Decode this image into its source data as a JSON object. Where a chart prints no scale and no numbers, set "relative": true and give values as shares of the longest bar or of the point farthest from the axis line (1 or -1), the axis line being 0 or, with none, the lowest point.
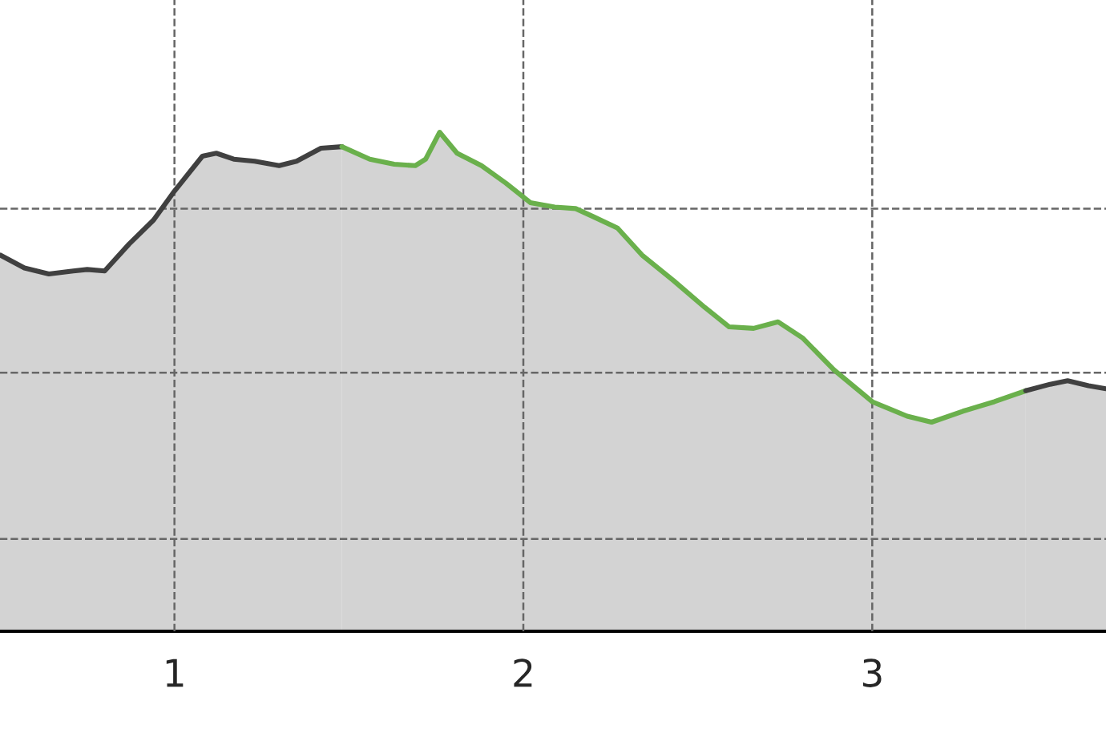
{
  "chart_data": {
    "type": "area",
    "relative": true,
    "color": "#d3d3d3",
    "xlim": [
      0.5,
      3.67
    ],
    "xticks": [
      1,
      2,
      3
    ],
    "grid": true,
    "line_style": "solid",
    "series": [
      {
        "color": "#404040",
        "x": [
          0.5,
          0.57,
          0.64,
          0.71,
          0.75,
          0.8,
          0.87,
          0.94,
          1.0,
          1.08,
          1.12,
          1.17,
          1.23,
          1.3,
          1.35,
          1.42,
          1.48
        ],
        "values": [
          0.754,
          0.728,
          0.716,
          0.722,
          0.725,
          0.722,
          0.776,
          0.824,
          0.882,
          0.952,
          0.958,
          0.946,
          0.942,
          0.933,
          0.942,
          0.968,
          0.971
        ]
      },
      {
        "color": "#6ab04c",
        "x": [
          1.48,
          1.56,
          1.63,
          1.69,
          1.72,
          1.76,
          1.81,
          1.88,
          1.95,
          2.02,
          2.09,
          2.15,
          2.2,
          2.27,
          2.34,
          2.43,
          2.52,
          2.59,
          2.66,
          2.73,
          2.8,
          2.89,
          3.0,
          3.1,
          3.17,
          3.26,
          3.35,
          3.44
        ],
        "values": [
          0.971,
          0.946,
          0.936,
          0.933,
          0.946,
          1.0,
          0.958,
          0.933,
          0.898,
          0.859,
          0.85,
          0.847,
          0.831,
          0.808,
          0.754,
          0.703,
          0.649,
          0.61,
          0.607,
          0.62,
          0.588,
          0.524,
          0.46,
          0.431,
          0.419,
          0.441,
          0.46,
          0.482
        ]
      },
      {
        "color": "#404040",
        "x": [
          3.44,
          3.51,
          3.56,
          3.62,
          3.67
        ],
        "values": [
          0.482,
          0.495,
          0.502,
          0.492,
          0.486
        ]
      }
    ]
  }
}
